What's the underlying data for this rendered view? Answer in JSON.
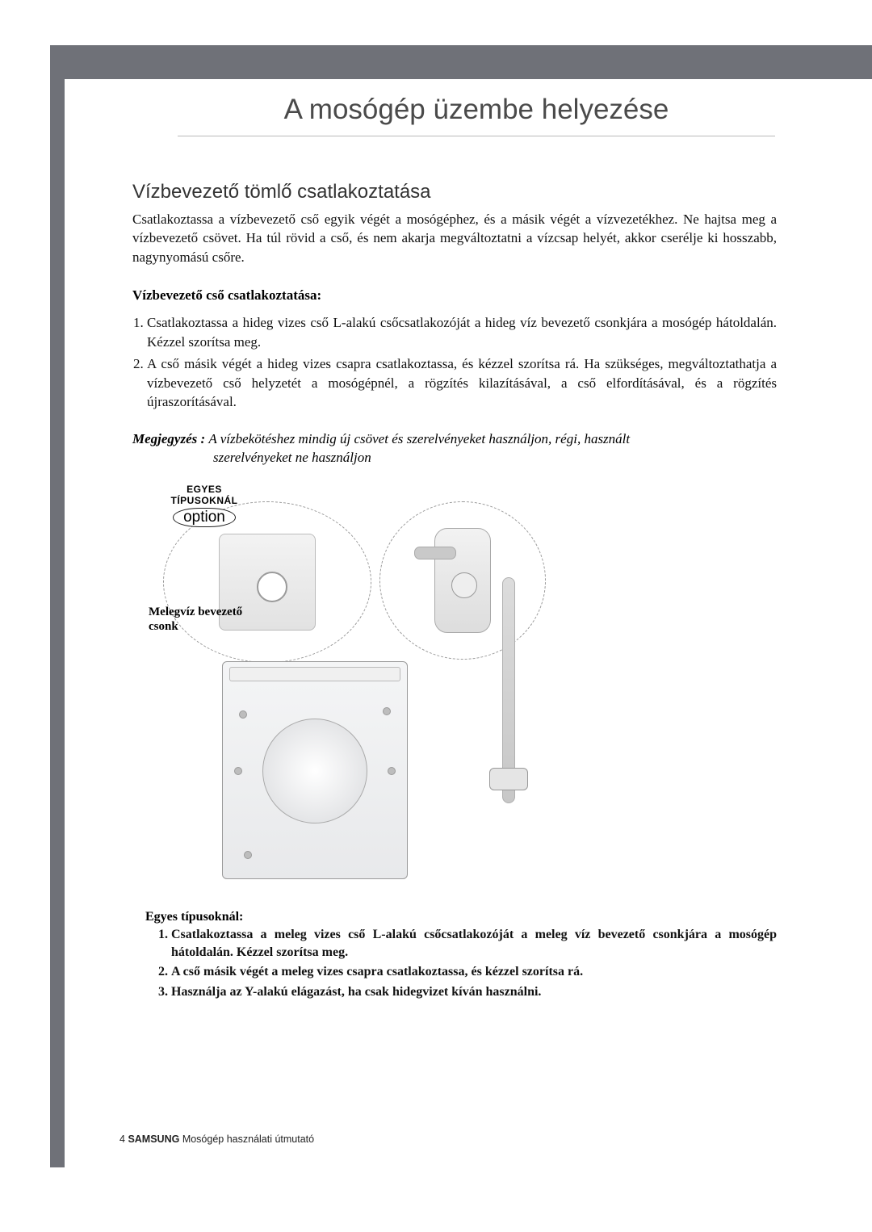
{
  "colors": {
    "bar": "#6f7178",
    "title": "#4a4a4a",
    "rule": "#b9b9b9",
    "text": "#111111",
    "figure_border": "#9a9a9a"
  },
  "page_title": "A mosógép üzembe helyezése",
  "section": {
    "heading": "Vízbevezető tömlő csatlakoztatása",
    "intro": "Csatlakoztassa a vízbevezető cső egyik végét a mosógéphez, és a másik végét a vízvezetékhez. Ne hajtsa meg a vízbevezető csövet. Ha túl rövid a cső, és nem akarja megváltoztatni a vízcsap helyét, akkor cserélje ki hosszabb, nagynyomású csőre.",
    "steps_heading": "Vízbevezető cső csatlakoztatása:",
    "steps": [
      "Csatlakoztassa a hideg vizes cső L-alakú csőcsatlakozóját a hideg víz bevezető csonkjára a mosógép hátoldalán. Kézzel szorítsa meg.",
      "A cső másik végét a hideg vizes csapra csatlakoztassa, és kézzel szorítsa rá. Ha szükséges, megváltoztathatja a vízbevezető cső helyzetét a mosógépnél, a rögzítés kilazításával, a cső elfordításával, és a rögzítés újraszorításával."
    ],
    "note_label": "Megjegyzés :",
    "note_body": "A vízbekötéshez mindig új csövet és szerelvényeket használjon, régi, használt",
    "note_cont": "szerelvényeket ne használjon"
  },
  "figure": {
    "tag_line1": "EGYES",
    "tag_line2": "TÍPUSOKNÁL",
    "option_label": "option",
    "hot_inlet_label": "Melegvíz bevezető csonk"
  },
  "subtypes": {
    "heading": "Egyes típusoknál:",
    "items": [
      "Csatlakoztassa a meleg vizes cső L-alakú csőcsatlakozóját a meleg víz bevezető csonkjára a mosógép hátoldalán. Kézzel szorítsa meg.",
      "A cső másik végét a meleg vizes csapra csatlakoztassa, és kézzel szorítsa rá.",
      "Használja az Y-alakú elágazást, ha csak hidegvizet kíván használni."
    ]
  },
  "footer": {
    "page_number": "4",
    "brand": "SAMSUNG",
    "tail": " Mosógép használati útmutató"
  }
}
